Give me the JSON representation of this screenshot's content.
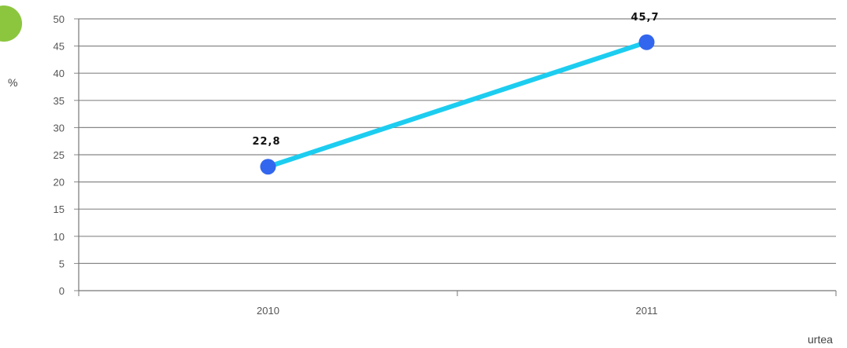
{
  "badge_color": "#8cc63f",
  "chart_data": {
    "type": "line",
    "categories": [
      "2010",
      "2011"
    ],
    "series": [
      {
        "values": [
          22.8,
          45.7
        ],
        "labels": [
          "22,8",
          "45,7"
        ]
      }
    ],
    "ylabel": "%",
    "xlabel": "urtea",
    "ylim": [
      0,
      50
    ],
    "yticks": [
      0,
      5,
      10,
      15,
      20,
      25,
      30,
      35,
      40,
      45,
      50
    ],
    "grid": true,
    "line_color": "#1ccdf0",
    "marker_color": "#3366ee",
    "grid_color": "#888888"
  }
}
